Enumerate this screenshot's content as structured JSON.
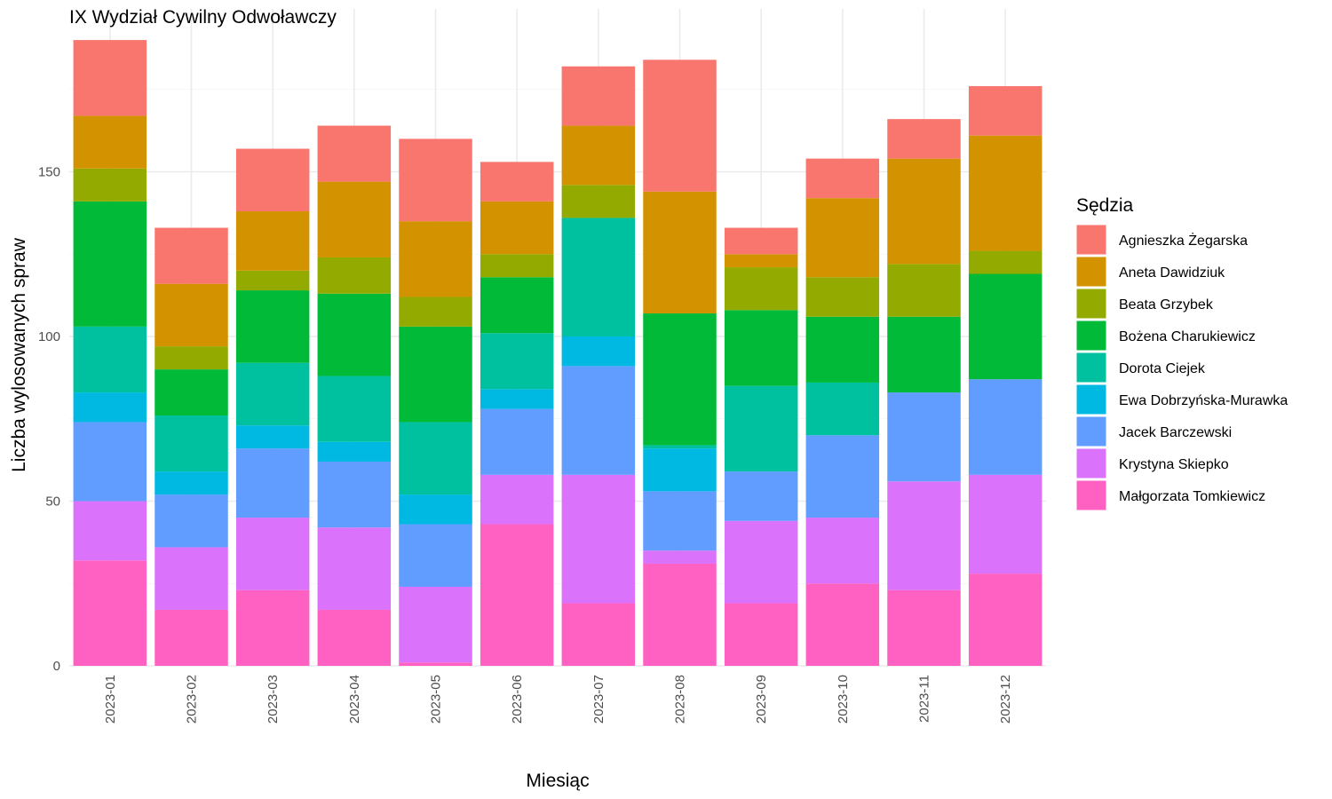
{
  "chart_data": {
    "type": "bar",
    "stacked": true,
    "title": "IX Wydział Cywilny Odwoławczy",
    "xlabel": "Miesiąc",
    "ylabel": "Liczba wylosowanych spraw",
    "ylim": [
      0,
      200
    ],
    "yticks": [
      0,
      50,
      100,
      150
    ],
    "grid": true,
    "legend_title": "Sędzia",
    "legend_position": "right",
    "categories": [
      "2023-01",
      "2023-02",
      "2023-03",
      "2023-04",
      "2023-05",
      "2023-06",
      "2023-07",
      "2023-08",
      "2023-09",
      "2023-10",
      "2023-11",
      "2023-12"
    ],
    "series": [
      {
        "name": "Agnieszka Żegarska",
        "color": "#F8766D",
        "values": [
          23,
          17,
          19,
          17,
          25,
          12,
          18,
          40,
          8,
          12,
          12,
          15
        ]
      },
      {
        "name": "Aneta Dawidziuk",
        "color": "#D39200",
        "values": [
          16,
          19,
          18,
          23,
          23,
          16,
          18,
          37,
          4,
          24,
          32,
          35
        ]
      },
      {
        "name": "Beata Grzybek",
        "color": "#93AA00",
        "values": [
          10,
          7,
          6,
          11,
          9,
          7,
          10,
          0,
          13,
          12,
          16,
          7
        ]
      },
      {
        "name": "Bożena Charukiewicz",
        "color": "#00BA38",
        "values": [
          38,
          14,
          22,
          25,
          29,
          17,
          0,
          40,
          23,
          20,
          23,
          32
        ]
      },
      {
        "name": "Dorota Ciejek",
        "color": "#00C19F",
        "values": [
          20,
          17,
          19,
          20,
          22,
          17,
          36,
          1,
          26,
          16,
          0,
          0
        ]
      },
      {
        "name": "Ewa Dobrzyńska-Murawka",
        "color": "#00B9E3",
        "values": [
          9,
          7,
          7,
          6,
          9,
          6,
          9,
          13,
          0,
          0,
          0,
          0
        ]
      },
      {
        "name": "Jacek Barczewski",
        "color": "#619CFF",
        "values": [
          24,
          16,
          21,
          20,
          19,
          20,
          33,
          18,
          15,
          25,
          27,
          29
        ]
      },
      {
        "name": "Krystyna Skiepko",
        "color": "#DB72FB",
        "values": [
          18,
          19,
          22,
          25,
          23,
          15,
          39,
          4,
          25,
          20,
          33,
          30
        ]
      },
      {
        "name": "Małgorzata Tomkiewicz",
        "color": "#FF61C3",
        "values": [
          32,
          17,
          23,
          17,
          1,
          43,
          19,
          31,
          19,
          25,
          23,
          28
        ]
      }
    ]
  }
}
